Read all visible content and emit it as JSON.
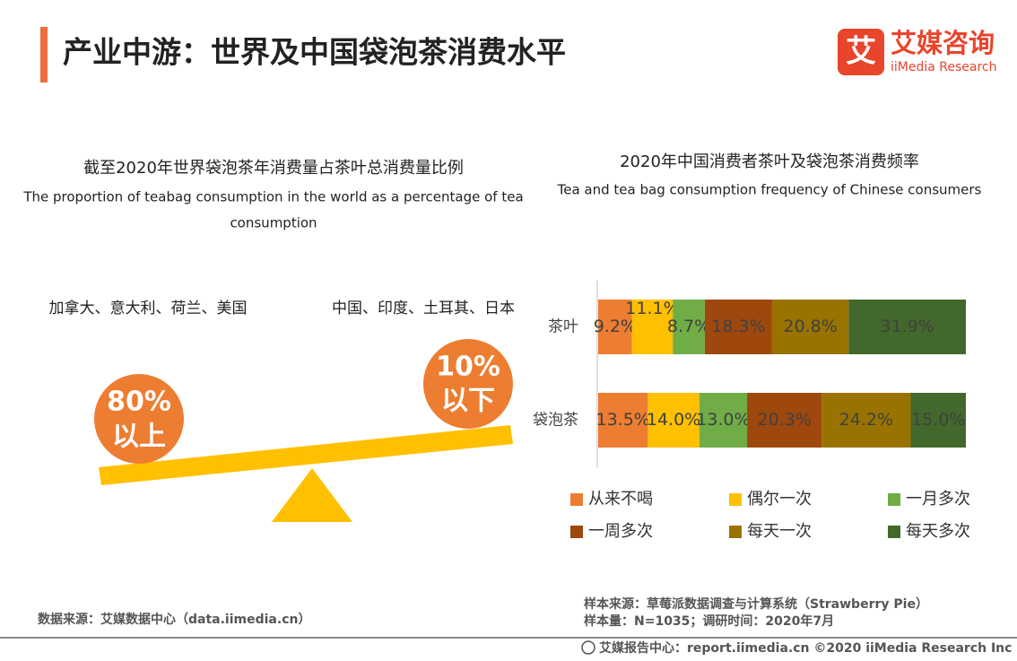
{
  "header": {
    "title": "产业中游：世界及中国袋泡茶消费水平",
    "logo_mark": "艾",
    "logo_name": "艾媒咨询",
    "logo_sub": "iiMedia Research"
  },
  "left": {
    "title": "截至2020年世界袋泡茶年消费量占茶叶总消费量比例",
    "subtitle_lines": [
      "The proportion of teabag consumption in the world as a percentage of tea",
      "consumption"
    ],
    "groups": [
      {
        "countries": "加拿大、意大利、荷兰、美国",
        "share": "80%",
        "qualifier": "以上"
      },
      {
        "countries": "中国、印度、土耳其、日本",
        "share": "10%",
        "qualifier": "以下"
      }
    ]
  },
  "chart_data": {
    "type": "bar",
    "orientation": "horizontal",
    "stacked": true,
    "title": "2020年中国消费者茶叶及袋泡茶消费频率",
    "subtitle": "Tea and tea bag consumption frequency of Chinese consumers",
    "categories": [
      "茶叶",
      "袋泡茶"
    ],
    "series": [
      {
        "name": "从来不喝",
        "color": "#ed7d31",
        "values": [
          9.2,
          13.5
        ],
        "value_labels": [
          "9.2%",
          "13.5%"
        ]
      },
      {
        "name": "偶尔一次",
        "color": "#ffc000",
        "values": [
          11.1,
          14
        ],
        "value_labels": [
          "11.1%",
          "14.0%"
        ]
      },
      {
        "name": "一月多次",
        "color": "#70ad47",
        "values": [
          8.7,
          13
        ],
        "value_labels": [
          "8.7%",
          "13.0%"
        ]
      },
      {
        "name": "一周多次",
        "color": "#9e480e",
        "values": [
          18.3,
          20.3
        ],
        "value_labels": [
          "18.3%",
          "20.3%"
        ]
      },
      {
        "name": "每天一次",
        "color": "#997300",
        "values": [
          20.8,
          24.2
        ],
        "value_labels": [
          "20.8%",
          "24.2%"
        ]
      },
      {
        "name": "每天多次",
        "color": "#43682b",
        "values": [
          31.9,
          15
        ],
        "value_labels": [
          "31.9%",
          "15.0%"
        ]
      }
    ]
  },
  "footer": {
    "source_left": "数据来源：艾媒数据中心（data.iimedia.cn）",
    "sample_source": "样本来源：草莓派数据调查与计算系统（Strawberry Pie）",
    "sample_size": "样本量：N=1035；调研时间：2020年7月",
    "copyright": "艾媒报告中心：report.iimedia.cn ©2020 iiMedia Research Inc"
  }
}
